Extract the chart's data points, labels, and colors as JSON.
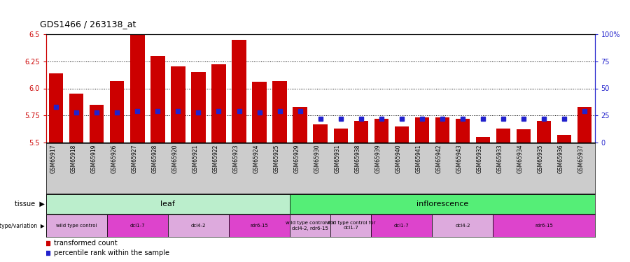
{
  "title": "GDS1466 / 263138_at",
  "samples": [
    "GSM65917",
    "GSM65918",
    "GSM65919",
    "GSM65926",
    "GSM65927",
    "GSM65928",
    "GSM65920",
    "GSM65921",
    "GSM65922",
    "GSM65923",
    "GSM65924",
    "GSM65925",
    "GSM65929",
    "GSM65930",
    "GSM65931",
    "GSM65938",
    "GSM65939",
    "GSM65940",
    "GSM65941",
    "GSM65942",
    "GSM65943",
    "GSM65932",
    "GSM65933",
    "GSM65934",
    "GSM65935",
    "GSM65936",
    "GSM65937"
  ],
  "red_values": [
    6.14,
    5.95,
    5.85,
    6.07,
    6.5,
    6.3,
    6.2,
    6.15,
    6.22,
    6.45,
    6.06,
    6.07,
    5.83,
    5.67,
    5.63,
    5.7,
    5.72,
    5.65,
    5.73,
    5.73,
    5.72,
    5.55,
    5.63,
    5.62,
    5.7,
    5.57,
    5.83
  ],
  "blue_percentiles": [
    33,
    28,
    28,
    28,
    29,
    29,
    29,
    28,
    29,
    29,
    28,
    29,
    29,
    22,
    22,
    22,
    22,
    22,
    22,
    22,
    22,
    22,
    22,
    22,
    22,
    22,
    29
  ],
  "y_min": 5.5,
  "y_max": 6.5,
  "y_ticks_left": [
    5.5,
    5.75,
    6.0,
    6.25,
    6.5
  ],
  "y_ticks_right_vals": [
    0,
    25,
    50,
    75,
    100
  ],
  "y_ticks_right_labels": [
    "0",
    "25",
    "50",
    "75",
    "100%"
  ],
  "bar_color": "#cc0000",
  "blue_color": "#2222cc",
  "grid_lines": [
    5.75,
    6.0,
    6.25
  ],
  "tick_bg_color": "#cccccc",
  "tissue_groups": [
    {
      "label": "leaf",
      "start": 0,
      "end": 12,
      "color": "#bbeecc"
    },
    {
      "label": "inflorescence",
      "start": 12,
      "end": 27,
      "color": "#55ee77"
    }
  ],
  "genotype_groups": [
    {
      "label": "wild type control",
      "start": 0,
      "end": 3,
      "color": "#ddaadd"
    },
    {
      "label": "dcl1-7",
      "start": 3,
      "end": 6,
      "color": "#dd44cc"
    },
    {
      "label": "dcl4-2",
      "start": 6,
      "end": 9,
      "color": "#ddaadd"
    },
    {
      "label": "rdr6-15",
      "start": 9,
      "end": 12,
      "color": "#dd44cc"
    },
    {
      "label": "wild type control for\ndcl4-2, rdr6-15",
      "start": 12,
      "end": 14,
      "color": "#ddaadd"
    },
    {
      "label": "wild type control for\ndcl1-7",
      "start": 14,
      "end": 16,
      "color": "#ddaadd"
    },
    {
      "label": "dcl1-7",
      "start": 16,
      "end": 19,
      "color": "#dd44cc"
    },
    {
      "label": "dcl4-2",
      "start": 19,
      "end": 22,
      "color": "#ddaadd"
    },
    {
      "label": "rdr6-15",
      "start": 22,
      "end": 27,
      "color": "#dd44cc"
    }
  ],
  "legend_red_label": "transformed count",
  "legend_blue_label": "percentile rank within the sample",
  "left_label_tissue": "tissue",
  "left_label_geno": "genotype/variation",
  "axis_left_color": "#cc0000",
  "axis_right_color": "#2222cc"
}
